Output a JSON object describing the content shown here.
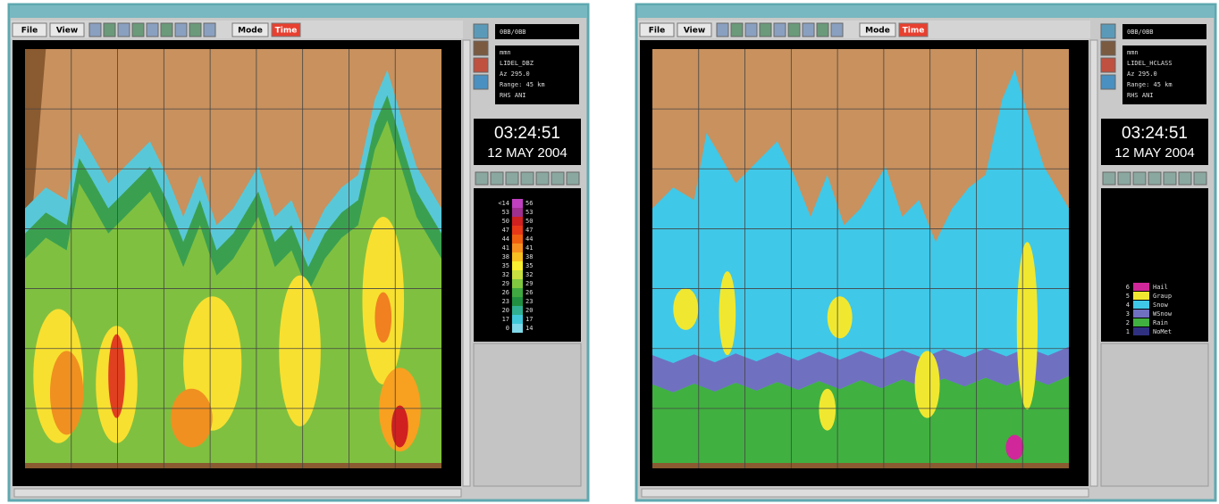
{
  "windows": [
    {
      "toolbar": {
        "file": "File",
        "view": "View",
        "mode": "Mode",
        "mode_value": "Time"
      },
      "status": "0BB/0BB",
      "info": [
        "mmn",
        "LIDEL_DBZ",
        "Az 295.0",
        "Range: 45 km",
        "RHS ANI"
      ],
      "time": "03:24:51",
      "date": "12 MAY 2004",
      "legend": {
        "kind": "scale",
        "rows": [
          {
            "low": "<14",
            "high": "56",
            "color": "#c040c0"
          },
          {
            "low": "53",
            "high": "53",
            "color": "#a03090"
          },
          {
            "low": "50",
            "high": "50",
            "color": "#d02020"
          },
          {
            "low": "47",
            "high": "47",
            "color": "#e83818"
          },
          {
            "low": "44",
            "high": "44",
            "color": "#f06010"
          },
          {
            "low": "41",
            "high": "41",
            "color": "#f89020"
          },
          {
            "low": "38",
            "high": "38",
            "color": "#f8c020"
          },
          {
            "low": "35",
            "high": "35",
            "color": "#f8f030"
          },
          {
            "low": "32",
            "high": "32",
            "color": "#c8e040"
          },
          {
            "low": "29",
            "high": "29",
            "color": "#80c840"
          },
          {
            "low": "26",
            "high": "26",
            "color": "#40a840"
          },
          {
            "low": "23",
            "high": "23",
            "color": "#209040"
          },
          {
            "low": "20",
            "high": "20",
            "color": "#30b090"
          },
          {
            "low": "17",
            "high": "17",
            "color": "#40c8d8"
          },
          {
            "low": "0",
            "high": "14",
            "color": "#80d8e8"
          }
        ]
      }
    },
    {
      "toolbar": {
        "file": "File",
        "view": "View",
        "mode": "Mode",
        "mode_value": "Time"
      },
      "status": "0BB/0BB",
      "info": [
        "mmn",
        "LIDEL_HCLASS",
        "Az 295.0",
        "Range: 45 km",
        "RHS ANI"
      ],
      "time": "03:24:51",
      "date": "12 MAY 2004",
      "legend": {
        "kind": "classes",
        "rows": [
          {
            "num": "6",
            "name": "Hail",
            "color": "#d0289a"
          },
          {
            "num": "5",
            "name": "Graup",
            "color": "#f0e830"
          },
          {
            "num": "4",
            "name": "Snow",
            "color": "#40c8e8"
          },
          {
            "num": "3",
            "name": "WSnow",
            "color": "#7070c0"
          },
          {
            "num": "2",
            "name": "Rain",
            "color": "#40b040"
          },
          {
            "num": "1",
            "name": "NoMet",
            "color": "#303080"
          }
        ]
      }
    }
  ]
}
